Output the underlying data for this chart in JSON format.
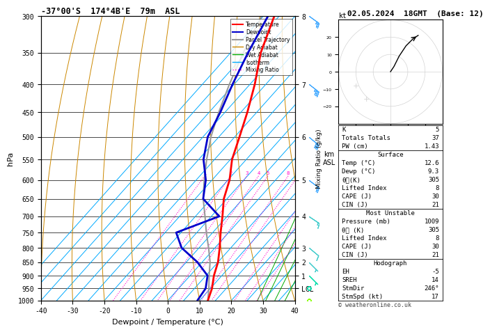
{
  "title_left": "-37°00'S  174°4B'E  79m  ASL",
  "title_right": "02.05.2024  18GMT  (Base: 12)",
  "xlabel": "Dewpoint / Temperature (°C)",
  "pressure_levels": [
    300,
    350,
    400,
    450,
    500,
    550,
    600,
    650,
    700,
    750,
    800,
    850,
    900,
    950,
    1000
  ],
  "km_ticks": {
    "300": "8",
    "400": "7",
    "500": "6",
    "600": "5",
    "700": "4",
    "800": "3",
    "850": "2",
    "900": "1",
    "950": "LCL"
  },
  "temperature_profile": {
    "pressure": [
      1000,
      950,
      900,
      850,
      800,
      750,
      700,
      650,
      600,
      550,
      500,
      450,
      400,
      350,
      300
    ],
    "temp": [
      12.6,
      10.5,
      7.5,
      5.0,
      1.5,
      -2.5,
      -6.5,
      -11.0,
      -14.5,
      -19.5,
      -23.5,
      -28.0,
      -33.5,
      -40.5,
      -46.5
    ]
  },
  "dewpoint_profile": {
    "pressure": [
      1000,
      950,
      900,
      850,
      800,
      750,
      700,
      650,
      600,
      550,
      500,
      450,
      400,
      350,
      300
    ],
    "temp": [
      9.3,
      8.5,
      5.5,
      -1.5,
      -10.5,
      -16.5,
      -7.5,
      -17.5,
      -22.0,
      -28.5,
      -33.5,
      -36.5,
      -40.5,
      -44.5,
      -48.5
    ]
  },
  "parcel_profile": {
    "pressure": [
      1000,
      950,
      900,
      850,
      800,
      750,
      700,
      650,
      600,
      550,
      500,
      450,
      400,
      350,
      300
    ],
    "temp": [
      12.6,
      9.5,
      6.0,
      2.5,
      -2.0,
      -7.0,
      -12.0,
      -17.5,
      -22.5,
      -27.5,
      -32.5,
      -37.0,
      -41.5,
      -46.0,
      -50.5
    ]
  },
  "colors": {
    "temperature": "#ff0000",
    "dewpoint": "#0000cc",
    "parcel": "#999999",
    "dry_adiabat": "#cc8800",
    "wet_adiabat": "#00aa00",
    "isotherm": "#00aaff",
    "mixing_ratio": "#ff00cc"
  },
  "isotherm_values": [
    -50,
    -45,
    -40,
    -35,
    -30,
    -25,
    -20,
    -15,
    -10,
    -5,
    0,
    5,
    10,
    15,
    20,
    25,
    30,
    35,
    40,
    45
  ],
  "dry_adiabat_values": [
    -40,
    -30,
    -20,
    -10,
    0,
    10,
    20,
    30,
    40,
    50,
    60,
    70
  ],
  "wet_adiabat_values": [
    -16,
    -10,
    -4,
    2,
    8,
    14,
    20,
    28,
    36
  ],
  "mixing_ratio_values": [
    1,
    2,
    3,
    4,
    5,
    8,
    10,
    16,
    20,
    25
  ],
  "wind_pressures": [
    300,
    400,
    500,
    600,
    700,
    800,
    850,
    900,
    950,
    1000
  ],
  "wind_u_kt": [
    -22,
    -28,
    -22,
    -16,
    -12,
    -6,
    -3,
    -2,
    -1,
    0
  ],
  "wind_v_kt": [
    16,
    22,
    18,
    12,
    8,
    5,
    3,
    2,
    1,
    0
  ],
  "wind_colors": [
    "#44aaff",
    "#44aaff",
    "#44aaff",
    "#44aaff",
    "#44cccc",
    "#44cccc",
    "#44cccc",
    "#00ddaa",
    "#00ddaa",
    "#88ff00"
  ],
  "surface_data": {
    "K": 5,
    "Totals_Totals": 37,
    "PW_cm": 1.43,
    "Temp_C": 12.6,
    "Dewp_C": 9.3,
    "theta_e_K": 305,
    "Lifted_Index": 8,
    "CAPE_J": 30,
    "CIN_J": 21
  },
  "most_unstable": {
    "Pressure_mb": 1009,
    "theta_e_K": 305,
    "Lifted_Index": 8,
    "CAPE_J": 30,
    "CIN_J": 21
  },
  "hodograph": {
    "EH": -5,
    "SREH": 14,
    "StmDir": 246,
    "StmSpd_kt": 17
  },
  "copyright": "© weatheronline.co.uk"
}
